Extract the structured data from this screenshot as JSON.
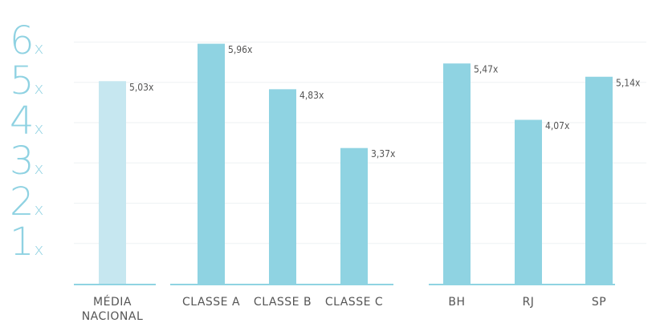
{
  "chart_data": {
    "type": "bar",
    "categories": [
      "MÉDIA NACIONAL",
      "CLASSE A",
      "CLASSE B",
      "CLASSE C",
      "BH",
      "RJ",
      "SP"
    ],
    "values": [
      5.03,
      5.96,
      4.83,
      3.37,
      5.47,
      4.07,
      5.14
    ],
    "value_labels": [
      "5,03x",
      "5,96x",
      "4,83x",
      "3,37x",
      "5,47x",
      "4,07x",
      "5,14x"
    ],
    "colors": [
      "#c6e7f0",
      "#8fd3e2",
      "#8fd3e2",
      "#8fd3e2",
      "#8fd3e2",
      "#8fd3e2",
      "#8fd3e2"
    ],
    "ylim": [
      0,
      6.25
    ],
    "yticks": [
      {
        "value": 1,
        "label": "1x"
      },
      {
        "value": 2,
        "label": "2x"
      },
      {
        "value": 3,
        "label": "3x"
      },
      {
        "value": 4,
        "label": "4x"
      },
      {
        "value": 5,
        "label": "5x"
      },
      {
        "value": 6,
        "label": "6x"
      }
    ],
    "grid": true
  }
}
